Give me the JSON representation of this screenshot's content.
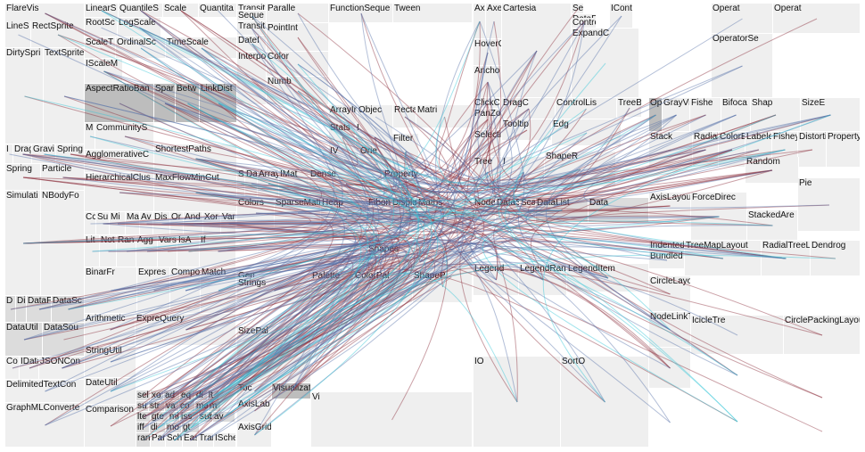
{
  "colors": {
    "light": "#efefef",
    "mid": "#dcdcdc",
    "dark": "#bdbdbd",
    "text": "#111111",
    "edge_red": "#8b2f3c",
    "edge_blue": "#5672a8",
    "edge_cyan": "#33c6d8"
  },
  "cells": [
    {
      "label": "FlareVis",
      "shade": "light",
      "group": "flare"
    },
    {
      "label": "LineS",
      "shade": "light",
      "group": "display"
    },
    {
      "label": "RectSprite",
      "shade": "light",
      "group": "display"
    },
    {
      "label": "DirtySpri",
      "shade": "light",
      "group": "display"
    },
    {
      "label": "TextSprite",
      "shade": "light",
      "group": "display"
    },
    {
      "label": "I",
      "shade": "light",
      "group": "physics"
    },
    {
      "label": "Drag",
      "shade": "light",
      "group": "physics"
    },
    {
      "label": "Gravi",
      "shade": "light",
      "group": "physics"
    },
    {
      "label": "Spring",
      "shade": "light",
      "group": "physics"
    },
    {
      "label": "Spring",
      "shade": "light",
      "group": "physics"
    },
    {
      "label": "Particle",
      "shade": "light",
      "group": "physics"
    },
    {
      "label": "Simulati",
      "shade": "light",
      "group": "physics"
    },
    {
      "label": "NBodyFo",
      "shade": "light",
      "group": "physics"
    },
    {
      "label": "D",
      "shade": "mid",
      "group": "data"
    },
    {
      "label": "Di",
      "shade": "mid",
      "group": "data"
    },
    {
      "label": "DataF",
      "shade": "mid",
      "group": "data"
    },
    {
      "label": "DataSc",
      "shade": "mid",
      "group": "data"
    },
    {
      "label": "DataUtil",
      "shade": "mid",
      "group": "data"
    },
    {
      "label": "DataSou",
      "shade": "mid",
      "group": "data"
    },
    {
      "label": "Co",
      "shade": "light",
      "group": "converters"
    },
    {
      "label": "IData",
      "shade": "light",
      "group": "converters"
    },
    {
      "label": "JSONCon",
      "shade": "light",
      "group": "converters"
    },
    {
      "label": "DelimitedTextCon",
      "shade": "light",
      "group": "converters"
    },
    {
      "label": "GraphMLConverte",
      "shade": "light",
      "group": "converters"
    },
    {
      "label": "LinearS",
      "shade": "light",
      "group": "scale"
    },
    {
      "label": "QuantileS",
      "shade": "light",
      "group": "scale"
    },
    {
      "label": "Scale",
      "shade": "light",
      "group": "scale"
    },
    {
      "label": "Quantita",
      "shade": "light",
      "group": "scale"
    },
    {
      "label": "RootSc",
      "shade": "light",
      "group": "scale"
    },
    {
      "label": "LogScale",
      "shade": "light",
      "group": "scale"
    },
    {
      "label": "ScaleT",
      "shade": "light",
      "group": "scale"
    },
    {
      "label": "OrdinalSc",
      "shade": "light",
      "group": "scale"
    },
    {
      "label": "TimeScale",
      "shade": "light",
      "group": "scale"
    },
    {
      "label": "IScaleM",
      "shade": "light",
      "group": "scale"
    },
    {
      "label": "AspectRatioBan",
      "shade": "dark",
      "group": "cluster"
    },
    {
      "label": "Spar",
      "shade": "dark",
      "group": "cluster"
    },
    {
      "label": "Betw",
      "shade": "dark",
      "group": "cluster"
    },
    {
      "label": "LinkDist",
      "shade": "dark",
      "group": "cluster"
    },
    {
      "label": "M",
      "shade": "light",
      "group": "cluster"
    },
    {
      "label": "CommunityS",
      "shade": "light",
      "group": "cluster"
    },
    {
      "label": "AgglomerativeC",
      "shade": "light",
      "group": "cluster"
    },
    {
      "label": "HierarchicalClus",
      "shade": "light",
      "group": "cluster"
    },
    {
      "label": "ShortestPaths",
      "shade": "light",
      "group": "graph"
    },
    {
      "label": "MaxFlowMinCut",
      "shade": "light",
      "group": "graph"
    },
    {
      "label": "Cc",
      "shade": "light",
      "group": "query"
    },
    {
      "label": "Su",
      "shade": "light",
      "group": "query"
    },
    {
      "label": "Mi",
      "shade": "light",
      "group": "query"
    },
    {
      "label": "Ma",
      "shade": "light",
      "group": "query"
    },
    {
      "label": "Av",
      "shade": "light",
      "group": "query"
    },
    {
      "label": "Dis",
      "shade": "light",
      "group": "query"
    },
    {
      "label": "Or",
      "shade": "light",
      "group": "query"
    },
    {
      "label": "And",
      "shade": "light",
      "group": "query"
    },
    {
      "label": "Xor",
      "shade": "light",
      "group": "query"
    },
    {
      "label": "Var",
      "shade": "light",
      "group": "query"
    },
    {
      "label": "Lit",
      "shade": "light",
      "group": "query"
    },
    {
      "label": "Not",
      "shade": "light",
      "group": "query"
    },
    {
      "label": "Ran",
      "shade": "light",
      "group": "query"
    },
    {
      "label": "Agg",
      "shade": "light",
      "group": "query"
    },
    {
      "label": "Vars",
      "shade": "light",
      "group": "query"
    },
    {
      "label": "IsA",
      "shade": "light",
      "group": "query"
    },
    {
      "label": "If",
      "shade": "light",
      "group": "query"
    },
    {
      "label": "BinarFr",
      "shade": "light",
      "group": "query"
    },
    {
      "label": "Expres",
      "shade": "light",
      "group": "query"
    },
    {
      "label": "Compo",
      "shade": "light",
      "group": "query"
    },
    {
      "label": "Match",
      "shade": "light",
      "group": "query"
    },
    {
      "label": "Arithmetic",
      "shade": "light",
      "group": "query"
    },
    {
      "label": "ExpreQuery",
      "shade": "light",
      "group": "query"
    },
    {
      "label": "StringUtil",
      "shade": "light",
      "group": "util"
    },
    {
      "label": "DateUtil",
      "shade": "light",
      "group": "util"
    },
    {
      "label": "Comparison",
      "shade": "light",
      "group": "query"
    },
    {
      "label": "sel",
      "shade": "mid",
      "group": "methods"
    },
    {
      "label": "xo",
      "shade": "mid",
      "group": "methods"
    },
    {
      "label": "ad",
      "shade": "mid",
      "group": "methods"
    },
    {
      "label": "eq",
      "shade": "mid",
      "group": "methods"
    },
    {
      "label": "di",
      "shade": "mid",
      "group": "methods"
    },
    {
      "label": "lt",
      "shade": "mid",
      "group": "methods"
    },
    {
      "label": "su",
      "shade": "mid",
      "group": "methods"
    },
    {
      "label": "str",
      "shade": "mid",
      "group": "methods"
    },
    {
      "label": "va",
      "shade": "mid",
      "group": "methods"
    },
    {
      "label": "co",
      "shade": "mid",
      "group": "methods"
    },
    {
      "label": "max",
      "shade": "mid",
      "group": "methods"
    },
    {
      "label": "m",
      "shade": "mid",
      "group": "methods"
    },
    {
      "label": "lte",
      "shade": "mid",
      "group": "methods"
    },
    {
      "label": "gte",
      "shade": "mid",
      "group": "methods"
    },
    {
      "label": "mi",
      "shade": "mid",
      "group": "methods"
    },
    {
      "label": "iss",
      "shade": "mid",
      "group": "methods"
    },
    {
      "label": "sub",
      "shade": "mid",
      "group": "methods"
    },
    {
      "label": "av",
      "shade": "mid",
      "group": "methods"
    },
    {
      "label": "iff",
      "shade": "mid",
      "group": "methods"
    },
    {
      "label": "di",
      "shade": "mid",
      "group": "methods"
    },
    {
      "label": "mo",
      "shade": "mid",
      "group": "methods"
    },
    {
      "label": "gt",
      "shade": "mid",
      "group": "methods"
    },
    {
      "label": "rang",
      "shade": "mid",
      "group": "methods"
    },
    {
      "label": "Parallel",
      "shade": "light",
      "group": "animate"
    },
    {
      "label": "Scheduler",
      "shade": "light",
      "group": "animate"
    },
    {
      "label": "Easing",
      "shade": "light",
      "group": "animate"
    },
    {
      "label": "Transitioner",
      "shade": "light",
      "group": "animate"
    },
    {
      "label": "ISched",
      "shade": "light",
      "group": "animate"
    },
    {
      "label": "Transit",
      "shade": "light",
      "group": "animate"
    },
    {
      "label": "Paralle",
      "shade": "light",
      "group": "animate"
    },
    {
      "label": "FunctionSeque",
      "shade": "light",
      "group": "animate"
    },
    {
      "label": "Tween",
      "shade": "light",
      "group": "animate"
    },
    {
      "label": "Seque",
      "shade": "light",
      "group": "animate"
    },
    {
      "label": "Transition",
      "shade": "light",
      "group": "animate"
    },
    {
      "label": "DateI",
      "shade": "light",
      "group": "interpolate"
    },
    {
      "label": "PointInt",
      "shade": "light",
      "group": "interpolate"
    },
    {
      "label": "Color",
      "shade": "light",
      "group": "interpolate"
    },
    {
      "label": "Interpolator",
      "shade": "light",
      "group": "interpolate"
    },
    {
      "label": "Numb",
      "shade": "light",
      "group": "interpolate"
    },
    {
      "label": "ArrayInt",
      "shade": "light",
      "group": "interpolate"
    },
    {
      "label": "Objec",
      "shade": "light",
      "group": "interpolate"
    },
    {
      "label": "Rectang",
      "shade": "light",
      "group": "interpolate"
    },
    {
      "label": "Matri",
      "shade": "light",
      "group": "interpolate"
    },
    {
      "label": "Stats",
      "shade": "light",
      "group": "util"
    },
    {
      "label": "I",
      "shade": "light",
      "group": "util"
    },
    {
      "label": "IV",
      "shade": "light",
      "group": "util"
    },
    {
      "label": "Orie",
      "shade": "light",
      "group": "util"
    },
    {
      "label": "Filter",
      "shade": "light",
      "group": "util"
    },
    {
      "label": "Property",
      "shade": "light",
      "group": "util"
    },
    {
      "label": "Sort",
      "shade": "light",
      "group": "util"
    },
    {
      "label": "Dates",
      "shade": "light",
      "group": "util"
    },
    {
      "label": "Arrays",
      "shade": "light",
      "group": "util"
    },
    {
      "label": "IMat",
      "shade": "light",
      "group": "util"
    },
    {
      "label": "Dense",
      "shade": "light",
      "group": "util"
    },
    {
      "label": "Colors",
      "shade": "light",
      "group": "util"
    },
    {
      "label": "SparseMatri",
      "shade": "light",
      "group": "util"
    },
    {
      "label": "Heap",
      "shade": "light",
      "group": "util"
    },
    {
      "label": "FibonacciHeap",
      "shade": "light",
      "group": "util"
    },
    {
      "label": "Displays",
      "shade": "light",
      "group": "util"
    },
    {
      "label": "Maths",
      "shade": "light",
      "group": "util"
    },
    {
      "label": "Shapes",
      "shade": "light",
      "group": "util"
    },
    {
      "label": "Geometry",
      "shade": "light",
      "group": "util"
    },
    {
      "label": "Strings",
      "shade": "light",
      "group": "util"
    },
    {
      "label": "Palette",
      "shade": "light",
      "group": "palette"
    },
    {
      "label": "ColorPal",
      "shade": "light",
      "group": "palette"
    },
    {
      "label": "ShapeP",
      "shade": "light",
      "group": "palette"
    },
    {
      "label": "SizePal",
      "shade": "light",
      "group": "palette"
    },
    {
      "label": "Vi",
      "shade": "light",
      "group": "vis"
    },
    {
      "label": "Toc",
      "shade": "light",
      "group": "vis"
    },
    {
      "label": "Visualization",
      "shade": "dark",
      "group": "vis"
    },
    {
      "label": "AxisLab",
      "shade": "light",
      "group": "axis"
    },
    {
      "label": "AxisGrid",
      "shade": "light",
      "group": "axis"
    },
    {
      "label": "Axis",
      "shade": "light",
      "group": "axis"
    },
    {
      "label": "Axes",
      "shade": "light",
      "group": "axis"
    },
    {
      "label": "Cartesia",
      "shade": "light",
      "group": "axis"
    },
    {
      "label": "Select",
      "shade": "light",
      "group": "controls"
    },
    {
      "label": "DataE",
      "shade": "light",
      "group": "controls"
    },
    {
      "label": "IContr",
      "shade": "light",
      "group": "controls"
    },
    {
      "label": "Contro",
      "shade": "light",
      "group": "controls"
    },
    {
      "label": "ExpandC",
      "shade": "light",
      "group": "controls"
    },
    {
      "label": "HoverControl",
      "shade": "light",
      "group": "controls"
    },
    {
      "label": "Ancho",
      "shade": "light",
      "group": "controls"
    },
    {
      "label": "ClickContr",
      "shade": "light",
      "group": "controls"
    },
    {
      "label": "PanZoomContro",
      "shade": "light",
      "group": "controls"
    },
    {
      "label": "DragC",
      "shade": "light",
      "group": "controls"
    },
    {
      "label": "ControlLis",
      "shade": "light",
      "group": "controls"
    },
    {
      "label": "SelectionContro",
      "shade": "light",
      "group": "controls"
    },
    {
      "label": "Tooltip",
      "shade": "light",
      "group": "controls"
    },
    {
      "label": "Edg",
      "shade": "light",
      "group": "data"
    },
    {
      "label": "Tree",
      "shade": "light",
      "group": "data"
    },
    {
      "label": "I",
      "shade": "light",
      "group": "data"
    },
    {
      "label": "ShapeR",
      "shade": "light",
      "group": "data"
    },
    {
      "label": "TreeBuilder",
      "shade": "light",
      "group": "data"
    },
    {
      "label": "NodeSprite",
      "shade": "light",
      "group": "data"
    },
    {
      "label": "DataSprite",
      "shade": "light",
      "group": "data"
    },
    {
      "label": "ScaleBindi",
      "shade": "light",
      "group": "data"
    },
    {
      "label": "DataList",
      "shade": "mid",
      "group": "data"
    },
    {
      "label": "Data",
      "shade": "mid",
      "group": "data"
    },
    {
      "label": "LegendItem",
      "shade": "light",
      "group": "legend"
    },
    {
      "label": "Legend",
      "shade": "light",
      "group": "legend"
    },
    {
      "label": "LegendRange",
      "shade": "light",
      "group": "legend"
    },
    {
      "label": "IO",
      "shade": "light",
      "group": "operator"
    },
    {
      "label": "SortO",
      "shade": "light",
      "group": "operator"
    },
    {
      "label": "Operat",
      "shade": "light",
      "group": "operator"
    },
    {
      "label": "Operat",
      "shade": "light",
      "group": "operator"
    },
    {
      "label": "OperatorSe",
      "shade": "light",
      "group": "operator"
    },
    {
      "label": "OperatorList",
      "shade": "dark",
      "group": "operator"
    },
    {
      "label": "GrayVisibi",
      "shade": "light",
      "group": "operator"
    },
    {
      "label": "Fishe",
      "shade": "light",
      "group": "operator"
    },
    {
      "label": "Bifoca",
      "shade": "light",
      "group": "operator"
    },
    {
      "label": "Shap",
      "shade": "light",
      "group": "operator"
    },
    {
      "label": "SizeE",
      "shade": "light",
      "group": "operator"
    },
    {
      "label": "Stack",
      "shade": "light",
      "group": "operator"
    },
    {
      "label": "RadialL",
      "shade": "light",
      "group": "operator"
    },
    {
      "label": "ColorEncod",
      "shade": "light",
      "group": "operator"
    },
    {
      "label": "Labeler",
      "shade": "light",
      "group": "operator"
    },
    {
      "label": "FisheyeT",
      "shade": "light",
      "group": "operator"
    },
    {
      "label": "Distortion",
      "shade": "light",
      "group": "operator"
    },
    {
      "label": "PropertyEnc",
      "shade": "light",
      "group": "operator"
    },
    {
      "label": "Random",
      "shade": "light",
      "group": "layout"
    },
    {
      "label": "Pie",
      "shade": "light",
      "group": "layout"
    },
    {
      "label": "AxisLayout",
      "shade": "light",
      "group": "layout"
    },
    {
      "label": "ForceDirec",
      "shade": "light",
      "group": "layout"
    },
    {
      "label": "StackedAre",
      "shade": "light",
      "group": "layout"
    },
    {
      "label": "Indented",
      "shade": "light",
      "group": "layout"
    },
    {
      "label": "Bundled",
      "shade": "light",
      "group": "layout"
    },
    {
      "label": "TreeMapLayout",
      "shade": "light",
      "group": "layout"
    },
    {
      "label": "RadialTreeLayout",
      "shade": "light",
      "group": "layout"
    },
    {
      "label": "Dendrog",
      "shade": "light",
      "group": "layout"
    },
    {
      "label": "CircleLayout",
      "shade": "light",
      "group": "layout"
    },
    {
      "label": "NodeLinkTreeLay",
      "shade": "light",
      "group": "layout"
    },
    {
      "label": "IcicleTre",
      "shade": "light",
      "group": "layout"
    },
    {
      "label": "CirclePackingLayout",
      "shade": "light",
      "group": "layout"
    },
    {
      "label": "",
      "shade": "light",
      "group": "layout"
    }
  ],
  "edge_sets": [
    {
      "color": "edge_red",
      "count": 150
    },
    {
      "color": "edge_blue",
      "count": 140
    },
    {
      "color": "edge_cyan",
      "count": 40
    }
  ]
}
